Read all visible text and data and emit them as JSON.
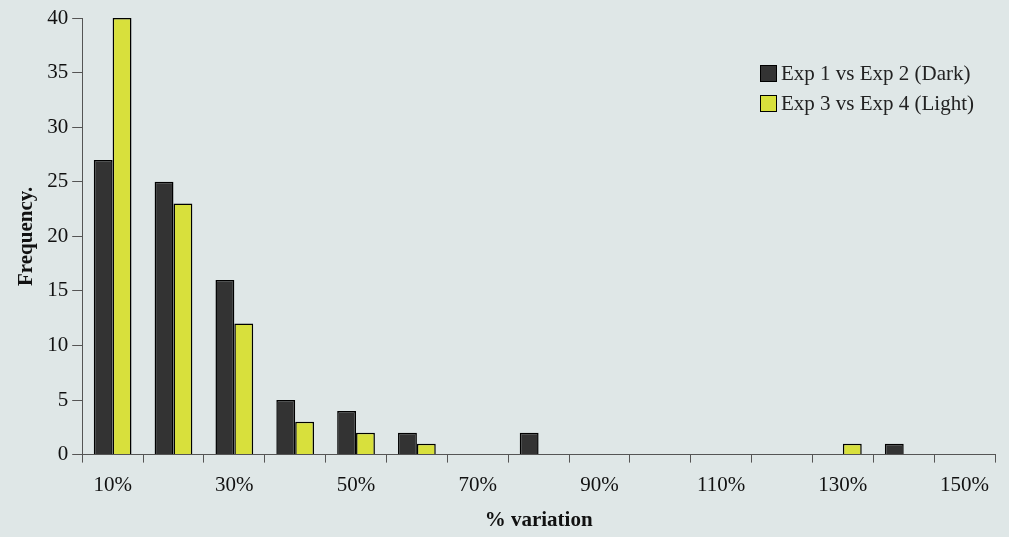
{
  "chart_data": {
    "type": "bar",
    "xlabel": "% variation",
    "ylabel": "Frequency.",
    "categories": [
      "10%",
      null,
      "30%",
      null,
      "50%",
      null,
      "70%",
      null,
      "90%",
      null,
      "110%",
      null,
      "130%",
      null,
      "150%"
    ],
    "series": [
      {
        "name": "Exp 1 vs Exp 2 (Dark)",
        "color": "#333333",
        "values": [
          27,
          25,
          16,
          5,
          4,
          2,
          0,
          2,
          0,
          0,
          0,
          0,
          0,
          1,
          0
        ]
      },
      {
        "name": "Exp 3 vs Exp 4 (Light)",
        "color": "#d8e03c",
        "values": [
          40,
          23,
          12,
          3,
          2,
          1,
          0,
          0,
          0,
          0,
          0,
          0,
          1,
          0,
          0
        ]
      }
    ],
    "ylim": [
      0,
      40
    ],
    "yticks": [
      0,
      5,
      10,
      15,
      20,
      25,
      30,
      35,
      40
    ],
    "grid": false,
    "legend": "top right"
  }
}
